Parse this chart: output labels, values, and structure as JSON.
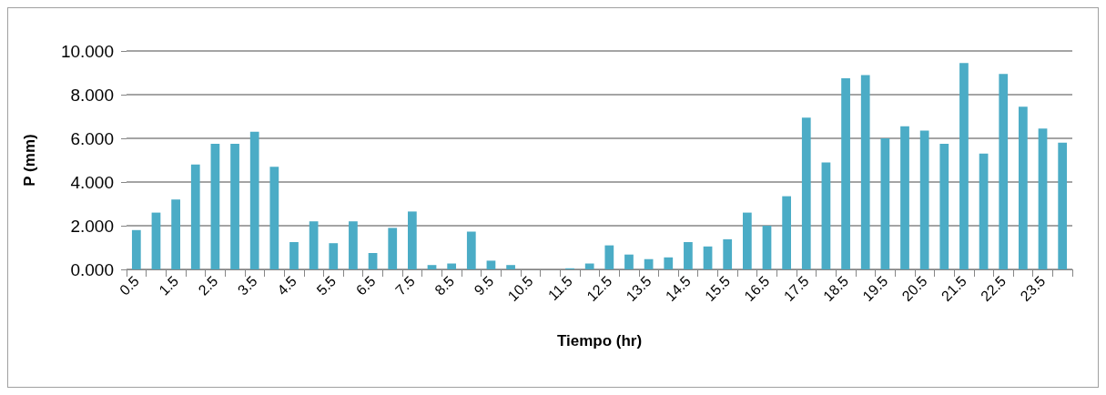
{
  "chart_data": {
    "type": "bar",
    "xlabel": "Tiempo (hr)",
    "ylabel": "P (mm)",
    "categories": [
      "0.5",
      null,
      "1.5",
      null,
      "2.5",
      null,
      "3.5",
      null,
      "4.5",
      null,
      "5.5",
      null,
      "6.5",
      null,
      "7.5",
      null,
      "8.5",
      null,
      "9.5",
      null,
      "10.5",
      null,
      "11.5",
      null,
      "12.5",
      null,
      "13.5",
      null,
      "14.5",
      null,
      "15.5",
      null,
      "16.5",
      null,
      "17.5",
      null,
      "18.5",
      null,
      "19.5",
      null,
      "20.5",
      null,
      "21.5",
      null,
      "22.5",
      null,
      "23.5",
      null
    ],
    "values": [
      1.8,
      2.6,
      3.2,
      4.8,
      5.75,
      5.75,
      6.3,
      4.7,
      1.25,
      2.2,
      1.2,
      2.2,
      0.75,
      1.9,
      2.65,
      0.2,
      0.27,
      1.73,
      0.4,
      0.2,
      0,
      0,
      0.05,
      0.27,
      1.1,
      0.68,
      0.47,
      0.55,
      1.25,
      1.05,
      1.38,
      2.6,
      2.0,
      3.35,
      6.95,
      4.9,
      8.75,
      8.9,
      6.0,
      6.55,
      6.35,
      5.75,
      9.45,
      5.3,
      8.95,
      7.45,
      6.45,
      5.8
    ],
    "color": "#4bacc6",
    "ylim": [
      0,
      10
    ],
    "yticks": [
      {
        "value": 0,
        "label": "0.000"
      },
      {
        "value": 2,
        "label": "2.000"
      },
      {
        "value": 4,
        "label": "4.000"
      },
      {
        "value": 6,
        "label": "6.000"
      },
      {
        "value": 8,
        "label": "8.000"
      },
      {
        "value": 10,
        "label": "10.000"
      }
    ],
    "grid": "y"
  }
}
